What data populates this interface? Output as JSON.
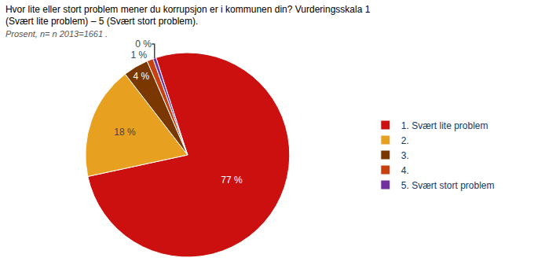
{
  "chart_data": {
    "type": "pie",
    "title": "Hvor lite eller stort problem mener du korrupsjon er i kommunen din? Vurderingsskala 1 (Svært lite problem) – 5 (Svært stort problem).",
    "subtitle": "Prosent, n= n 2013=1661 .",
    "categories": [
      "1. Svært lite problem",
      "2.",
      "3.",
      "4.",
      "5. Svært stort problem"
    ],
    "values": [
      77,
      18,
      4,
      1,
      0.5
    ],
    "value_labels": [
      "77 %",
      "18 %",
      "4 %",
      "1 %",
      "0 %"
    ],
    "colors": [
      "#cc1010",
      "#e8a020",
      "#7a3800",
      "#c84010",
      "#7030a0"
    ],
    "data_labels": true,
    "legend": "right"
  }
}
